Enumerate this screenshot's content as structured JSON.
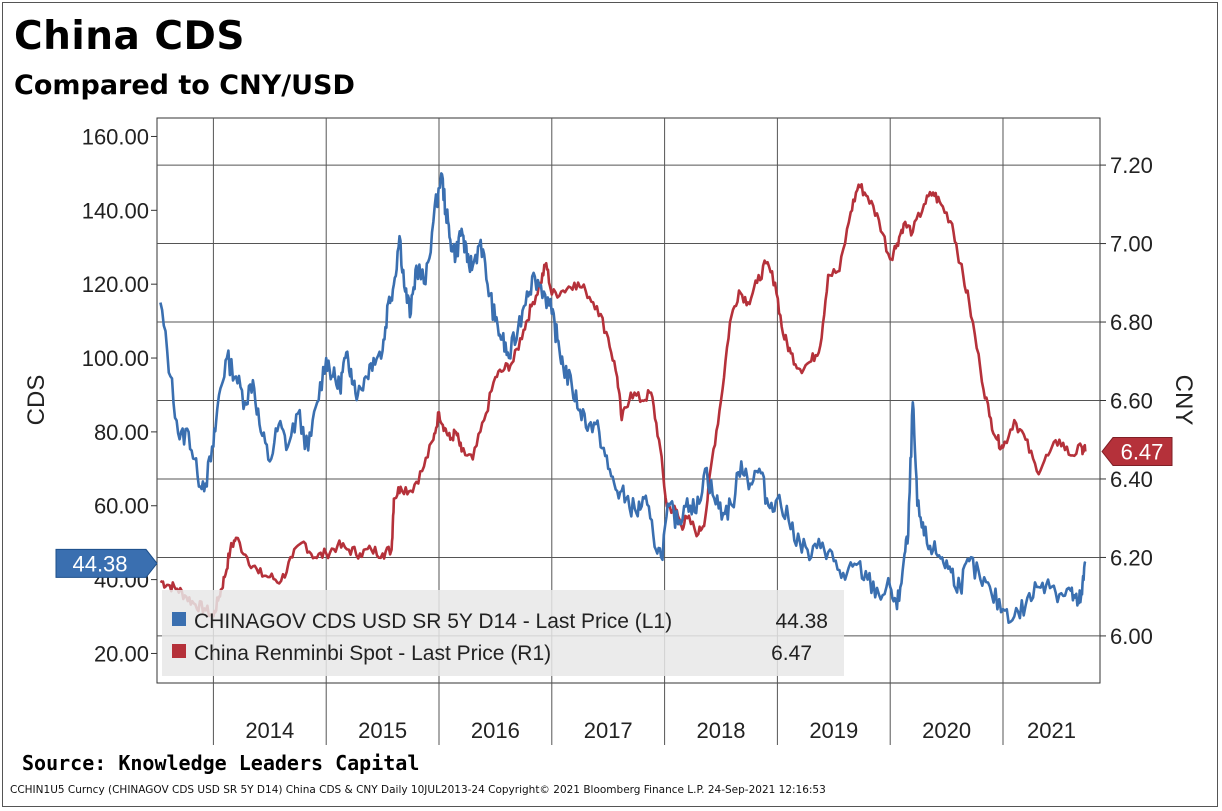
{
  "title": "China CDS",
  "subtitle": "Compared to CNY/USD",
  "source": "Source: Knowledge Leaders Capital",
  "footer": "CCHIN1U5 Curncy (CHINAGOV CDS USD SR 5Y D14) China CDS & CNY  Daily 10JUL2013-24  Copyright© 2021 Bloomberg Finance L.P.  24-Sep-2021 12:16:53",
  "chart_data": {
    "type": "line",
    "ylabel": "CDS",
    "y2label": "CNY",
    "ylim": [
      12,
      165
    ],
    "y2lim": [
      5.88,
      7.32
    ],
    "yticks": [
      "20.00",
      "40.00",
      "60.00",
      "80.00",
      "100.00",
      "120.00",
      "140.00",
      "160.00"
    ],
    "y2ticks": [
      "6.00",
      "6.20",
      "6.40",
      "6.60",
      "6.80",
      "7.00",
      "7.20"
    ],
    "xlim": [
      2013.5,
      2021.86
    ],
    "x_year_boundaries": [
      2014,
      2015,
      2016,
      2017,
      2018,
      2019,
      2020,
      2021
    ],
    "xticks": [
      "2014",
      "2015",
      "2016",
      "2017",
      "2018",
      "2019",
      "2020",
      "2021"
    ],
    "grid": true,
    "legend_position": "bottom-left",
    "colors": {
      "cds": "#3a6fb0",
      "cny": "#b5313a"
    },
    "series": [
      {
        "name": "CHINAGOV CDS USD SR 5Y D14 - Last Price (L1)",
        "last_value": "44.38",
        "axis": "left",
        "color": "#3a6fb0",
        "x": [
          2013.53,
          2013.62,
          2013.7,
          2013.78,
          2013.86,
          2013.93,
          2014.0,
          2014.05,
          2014.12,
          2014.2,
          2014.28,
          2014.35,
          2014.42,
          2014.5,
          2014.58,
          2014.66,
          2014.75,
          2014.84,
          2014.92,
          2015.0,
          2015.06,
          2015.12,
          2015.17,
          2015.22,
          2015.28,
          2015.35,
          2015.42,
          2015.5,
          2015.55,
          2015.6,
          2015.65,
          2015.7,
          2015.75,
          2015.8,
          2015.88,
          2015.95,
          2016.02,
          2016.06,
          2016.1,
          2016.15,
          2016.2,
          2016.25,
          2016.3,
          2016.37,
          2016.43,
          2016.5,
          2016.56,
          2016.62,
          2016.7,
          2016.78,
          2016.85,
          2016.93,
          2017.0,
          2017.05,
          2017.1,
          2017.18,
          2017.25,
          2017.33,
          2017.42,
          2017.5,
          2017.58,
          2017.66,
          2017.75,
          2017.82,
          2017.9,
          2017.97,
          2018.04,
          2018.12,
          2018.2,
          2018.28,
          2018.36,
          2018.44,
          2018.52,
          2018.6,
          2018.68,
          2018.76,
          2018.84,
          2018.92,
          2019.0,
          2019.1,
          2019.2,
          2019.3,
          2019.4,
          2019.5,
          2019.6,
          2019.7,
          2019.8,
          2019.9,
          2020.0,
          2020.06,
          2020.12,
          2020.16,
          2020.2,
          2020.24,
          2020.3,
          2020.38,
          2020.46,
          2020.54,
          2020.62,
          2020.7,
          2020.8,
          2020.9,
          2021.0,
          2021.1,
          2021.2,
          2021.3,
          2021.4,
          2021.5,
          2021.6,
          2021.66,
          2021.7,
          2021.73
        ],
        "y": [
          115,
          95,
          78,
          80,
          68,
          66,
          76,
          90,
          100,
          95,
          88,
          94,
          80,
          72,
          82,
          76,
          85,
          75,
          88,
          100,
          95,
          92,
          100,
          97,
          90,
          95,
          100,
          102,
          115,
          120,
          133,
          118,
          112,
          125,
          120,
          137,
          150,
          140,
          132,
          128,
          135,
          126,
          125,
          132,
          120,
          110,
          105,
          100,
          108,
          118,
          122,
          118,
          112,
          105,
          98,
          92,
          86,
          82,
          80,
          70,
          64,
          62,
          58,
          62,
          52,
          46,
          60,
          55,
          62,
          58,
          70,
          62,
          58,
          60,
          72,
          66,
          70,
          60,
          62,
          56,
          50,
          46,
          50,
          45,
          40,
          44,
          40,
          36,
          38,
          32,
          45,
          52,
          88,
          60,
          52,
          48,
          46,
          42,
          38,
          45,
          40,
          36,
          32,
          30,
          33,
          38,
          40,
          36,
          37,
          33,
          36,
          44.38
        ]
      },
      {
        "name": "China Renminbi Spot - Last Price (R1)",
        "last_value": "6.47",
        "axis": "right",
        "color": "#b5313a",
        "x": [
          2013.53,
          2013.6,
          2013.68,
          2013.76,
          2013.84,
          2013.92,
          2014.0,
          2014.05,
          2014.1,
          2014.15,
          2014.2,
          2014.3,
          2014.4,
          2014.5,
          2014.6,
          2014.7,
          2014.8,
          2014.9,
          2015.0,
          2015.1,
          2015.2,
          2015.3,
          2015.4,
          2015.5,
          2015.58,
          2015.6,
          2015.66,
          2015.75,
          2015.85,
          2015.95,
          2016.0,
          2016.05,
          2016.1,
          2016.15,
          2016.2,
          2016.3,
          2016.4,
          2016.5,
          2016.58,
          2016.66,
          2016.75,
          2016.82,
          2016.9,
          2016.95,
          2017.0,
          2017.1,
          2017.2,
          2017.3,
          2017.4,
          2017.5,
          2017.58,
          2017.62,
          2017.7,
          2017.8,
          2017.88,
          2017.95,
          2018.02,
          2018.1,
          2018.15,
          2018.2,
          2018.3,
          2018.36,
          2018.42,
          2018.5,
          2018.58,
          2018.66,
          2018.74,
          2018.82,
          2018.9,
          2018.98,
          2019.05,
          2019.12,
          2019.2,
          2019.3,
          2019.38,
          2019.45,
          2019.55,
          2019.65,
          2019.72,
          2019.8,
          2019.9,
          2020.0,
          2020.06,
          2020.12,
          2020.2,
          2020.3,
          2020.38,
          2020.45,
          2020.55,
          2020.62,
          2020.7,
          2020.8,
          2020.88,
          2020.95,
          2021.0,
          2021.1,
          2021.2,
          2021.3,
          2021.4,
          2021.5,
          2021.6,
          2021.7,
          2021.73
        ],
        "y": [
          6.14,
          6.13,
          6.12,
          6.1,
          6.08,
          6.07,
          6.05,
          6.1,
          6.15,
          6.22,
          6.25,
          6.2,
          6.16,
          6.15,
          6.14,
          6.2,
          6.24,
          6.2,
          6.21,
          6.23,
          6.22,
          6.21,
          6.22,
          6.21,
          6.22,
          6.35,
          6.38,
          6.37,
          6.42,
          6.5,
          6.57,
          6.53,
          6.5,
          6.52,
          6.47,
          6.45,
          6.55,
          6.66,
          6.68,
          6.7,
          6.78,
          6.84,
          6.9,
          6.95,
          6.87,
          6.88,
          6.9,
          6.88,
          6.84,
          6.76,
          6.66,
          6.55,
          6.62,
          6.6,
          6.62,
          6.5,
          6.33,
          6.32,
          6.28,
          6.3,
          6.26,
          6.3,
          6.45,
          6.6,
          6.8,
          6.88,
          6.85,
          6.9,
          6.95,
          6.9,
          6.77,
          6.72,
          6.68,
          6.7,
          6.74,
          6.92,
          6.93,
          7.08,
          7.15,
          7.12,
          7.06,
          6.96,
          7.0,
          7.05,
          7.03,
          7.1,
          7.13,
          7.1,
          7.05,
          6.95,
          6.85,
          6.68,
          6.56,
          6.5,
          6.48,
          6.55,
          6.5,
          6.42,
          6.46,
          6.5,
          6.46,
          6.48,
          6.47
        ]
      }
    ]
  }
}
